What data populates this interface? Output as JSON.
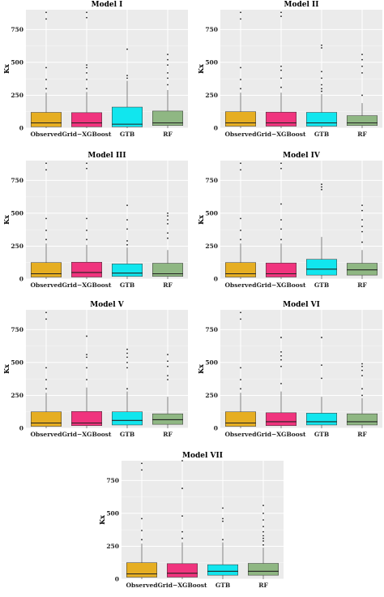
{
  "chart_data": [
    {
      "type": "box",
      "title": "Model I",
      "ylabel": "Kx",
      "ylim": [
        0,
        900
      ],
      "yticks": [
        0,
        250,
        500,
        750
      ],
      "categories": [
        "Observed",
        "Grid−XGBoost",
        "GTB",
        "RF"
      ],
      "boxes": [
        {
          "category": "Observed",
          "color": "#E6AE22",
          "q1": 10,
          "median": 40,
          "q3": 120,
          "whisker_low": 0,
          "whisker_high": 270,
          "outliers": [
            300,
            370,
            460,
            830,
            880
          ]
        },
        {
          "category": "Grid−XGBoost",
          "color": "#F0347E",
          "q1": 10,
          "median": 40,
          "q3": 118,
          "whisker_low": 0,
          "whisker_high": 275,
          "outliers": [
            300,
            370,
            420,
            460,
            480,
            840,
            880
          ]
        },
        {
          "category": "GTB",
          "color": "#11E6EE",
          "q1": 10,
          "median": 30,
          "q3": 160,
          "whisker_low": 0,
          "whisker_high": 360,
          "outliers": [
            380,
            400,
            600
          ]
        },
        {
          "category": "RF",
          "color": "#8FB783",
          "q1": 20,
          "median": 40,
          "q3": 130,
          "whisker_low": 0,
          "whisker_high": 290,
          "outliers": [
            330,
            380,
            420,
            480,
            520,
            560
          ]
        }
      ]
    },
    {
      "type": "box",
      "title": "Model II",
      "ylabel": "Kx",
      "ylim": [
        0,
        900
      ],
      "yticks": [
        0,
        250,
        500,
        750
      ],
      "categories": [
        "Observed",
        "Grid−XGBoost",
        "GTB",
        "RF"
      ],
      "boxes": [
        {
          "category": "Observed",
          "color": "#E6AE22",
          "q1": 15,
          "median": 40,
          "q3": 125,
          "whisker_low": 0,
          "whisker_high": 270,
          "outliers": [
            300,
            370,
            460,
            830,
            880
          ]
        },
        {
          "category": "Grid−XGBoost",
          "color": "#F0347E",
          "q1": 15,
          "median": 40,
          "q3": 122,
          "whisker_low": 0,
          "whisker_high": 270,
          "outliers": [
            310,
            380,
            440,
            470,
            850,
            880
          ]
        },
        {
          "category": "GTB",
          "color": "#11E6EE",
          "q1": 15,
          "median": 40,
          "q3": 120,
          "whisker_low": 0,
          "whisker_high": 260,
          "outliers": [
            280,
            300,
            330,
            380,
            430,
            610,
            630
          ]
        },
        {
          "category": "RF",
          "color": "#8FB783",
          "q1": 20,
          "median": 40,
          "q3": 95,
          "whisker_low": 0,
          "whisker_high": 190,
          "outliers": [
            250,
            420,
            470,
            520,
            560
          ]
        }
      ]
    },
    {
      "type": "box",
      "title": "Model III",
      "ylabel": "Kx",
      "ylim": [
        0,
        900
      ],
      "yticks": [
        0,
        250,
        500,
        750
      ],
      "categories": [
        "Observed",
        "Grid−XGBoost",
        "GTB",
        "RF"
      ],
      "boxes": [
        {
          "category": "Observed",
          "color": "#E6AE22",
          "q1": 15,
          "median": 40,
          "q3": 125,
          "whisker_low": 0,
          "whisker_high": 270,
          "outliers": [
            300,
            370,
            460,
            830,
            880
          ]
        },
        {
          "category": "Grid−XGBoost",
          "color": "#F0347E",
          "q1": 15,
          "median": 50,
          "q3": 128,
          "whisker_low": 0,
          "whisker_high": 260,
          "outliers": [
            300,
            370,
            460,
            840,
            880
          ]
        },
        {
          "category": "GTB",
          "color": "#11E6EE",
          "q1": 20,
          "median": 45,
          "q3": 115,
          "whisker_low": 0,
          "whisker_high": 240,
          "outliers": [
            260,
            290,
            380,
            450,
            560
          ]
        },
        {
          "category": "RF",
          "color": "#8FB783",
          "q1": 20,
          "median": 40,
          "q3": 120,
          "whisker_low": 0,
          "whisker_high": 220,
          "outliers": [
            310,
            350,
            420,
            450,
            480,
            500
          ]
        }
      ]
    },
    {
      "type": "box",
      "title": "Model IV",
      "ylabel": "Kx",
      "ylim": [
        0,
        900
      ],
      "yticks": [
        0,
        250,
        500,
        750
      ],
      "categories": [
        "Observed",
        "Grid−XGBoost",
        "GTB",
        "RF"
      ],
      "boxes": [
        {
          "category": "Observed",
          "color": "#E6AE22",
          "q1": 15,
          "median": 40,
          "q3": 125,
          "whisker_low": 0,
          "whisker_high": 270,
          "outliers": [
            300,
            370,
            460,
            830,
            880
          ]
        },
        {
          "category": "Grid−XGBoost",
          "color": "#F0347E",
          "q1": 15,
          "median": 40,
          "q3": 122,
          "whisker_low": 0,
          "whisker_high": 270,
          "outliers": [
            300,
            380,
            450,
            570,
            840,
            880
          ]
        },
        {
          "category": "GTB",
          "color": "#11E6EE",
          "q1": 30,
          "median": 75,
          "q3": 150,
          "whisker_low": 0,
          "whisker_high": 320,
          "outliers": [
            680,
            700,
            720
          ]
        },
        {
          "category": "RF",
          "color": "#8FB783",
          "q1": 30,
          "median": 70,
          "q3": 120,
          "whisker_low": 0,
          "whisker_high": 220,
          "outliers": [
            280,
            360,
            400,
            450,
            520,
            560
          ]
        }
      ]
    },
    {
      "type": "box",
      "title": "Model V",
      "ylabel": "Kx",
      "ylim": [
        0,
        900
      ],
      "yticks": [
        0,
        250,
        500,
        750
      ],
      "categories": [
        "Observed",
        "Grid−XGBoost",
        "GTB",
        "RF"
      ],
      "boxes": [
        {
          "category": "Observed",
          "color": "#E6AE22",
          "q1": 15,
          "median": 40,
          "q3": 125,
          "whisker_low": 0,
          "whisker_high": 270,
          "outliers": [
            300,
            370,
            460,
            830,
            880
          ]
        },
        {
          "category": "Grid−XGBoost",
          "color": "#F0347E",
          "q1": 20,
          "median": 40,
          "q3": 128,
          "whisker_low": 0,
          "whisker_high": 310,
          "outliers": [
            370,
            460,
            540,
            560,
            700
          ]
        },
        {
          "category": "GTB",
          "color": "#11E6EE",
          "q1": 25,
          "median": 60,
          "q3": 125,
          "whisker_low": 0,
          "whisker_high": 280,
          "outliers": [
            300,
            460,
            500,
            540,
            570,
            600
          ]
        },
        {
          "category": "RF",
          "color": "#8FB783",
          "q1": 30,
          "median": 65,
          "q3": 110,
          "whisker_low": 0,
          "whisker_high": 240,
          "outliers": [
            370,
            400,
            470,
            510,
            560
          ]
        }
      ]
    },
    {
      "type": "box",
      "title": "Model VI",
      "ylabel": "Kx",
      "ylim": [
        0,
        900
      ],
      "yticks": [
        0,
        250,
        500,
        750
      ],
      "categories": [
        "Observed",
        "Grid−XGBoost",
        "GTB",
        "RF"
      ],
      "boxes": [
        {
          "category": "Observed",
          "color": "#E6AE22",
          "q1": 15,
          "median": 40,
          "q3": 125,
          "whisker_low": 0,
          "whisker_high": 270,
          "outliers": [
            300,
            370,
            460,
            830,
            880
          ]
        },
        {
          "category": "Grid−XGBoost",
          "color": "#F0347E",
          "q1": 20,
          "median": 50,
          "q3": 118,
          "whisker_low": 0,
          "whisker_high": 280,
          "outliers": [
            340,
            470,
            520,
            550,
            580,
            690
          ]
        },
        {
          "category": "GTB",
          "color": "#11E6EE",
          "q1": 25,
          "median": 50,
          "q3": 115,
          "whisker_low": 0,
          "whisker_high": 240,
          "outliers": [
            380,
            480,
            690
          ]
        },
        {
          "category": "RF",
          "color": "#8FB783",
          "q1": 25,
          "median": 50,
          "q3": 110,
          "whisker_low": 0,
          "whisker_high": 230,
          "outliers": [
            250,
            300,
            400,
            440,
            470,
            490
          ]
        }
      ]
    },
    {
      "type": "box",
      "title": "Model VII",
      "ylabel": "Kx",
      "ylim": [
        0,
        900
      ],
      "yticks": [
        0,
        250,
        500,
        750
      ],
      "categories": [
        "Observed",
        "Grid−XGBoost",
        "GTB",
        "RF"
      ],
      "boxes": [
        {
          "category": "Observed",
          "color": "#E6AE22",
          "q1": 15,
          "median": 40,
          "q3": 125,
          "whisker_low": 0,
          "whisker_high": 270,
          "outliers": [
            300,
            370,
            460,
            830,
            880
          ]
        },
        {
          "category": "Grid−XGBoost",
          "color": "#F0347E",
          "q1": 15,
          "median": 45,
          "q3": 118,
          "whisker_low": 0,
          "whisker_high": 280,
          "outliers": [
            310,
            360,
            480,
            690,
            900
          ]
        },
        {
          "category": "GTB",
          "color": "#11E6EE",
          "q1": 30,
          "median": 60,
          "q3": 110,
          "whisker_low": 0,
          "whisker_high": 280,
          "outliers": [
            300,
            440,
            460,
            540
          ]
        },
        {
          "category": "RF",
          "color": "#8FB783",
          "q1": 30,
          "median": 60,
          "q3": 120,
          "whisker_low": 0,
          "whisker_high": 240,
          "outliers": [
            260,
            290,
            310,
            330,
            360,
            400,
            450,
            500,
            560
          ]
        }
      ]
    }
  ]
}
